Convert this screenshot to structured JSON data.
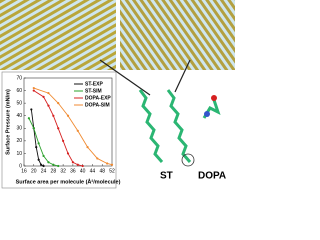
{
  "chart_data": {
    "type": "line",
    "xlabel": "Surface area per molecule (Å²/molecule)",
    "ylabel": "Surface Pressure (mN/m)",
    "xlim": [
      16,
      52
    ],
    "xticks": [
      16,
      20,
      24,
      28,
      32,
      36,
      40,
      44,
      48,
      52
    ],
    "ylim": [
      0,
      70
    ],
    "yticks": [
      0,
      10,
      20,
      30,
      40,
      50,
      60,
      70
    ],
    "legend": "upper right",
    "series": [
      {
        "name": "ST-EXP",
        "color": "#111111",
        "x": [
          19,
          20,
          21,
          22,
          23,
          24
        ],
        "values": [
          45,
          30,
          15,
          5,
          1,
          0
        ]
      },
      {
        "name": "ST-SIM",
        "color": "#2aa02a",
        "x": [
          18,
          20,
          22,
          24,
          26,
          28,
          30
        ],
        "values": [
          38,
          30,
          18,
          8,
          3,
          1,
          0
        ]
      },
      {
        "name": "DOPA-EXP",
        "color": "#d62020",
        "x": [
          20,
          24,
          26,
          28,
          30,
          32,
          34,
          36,
          38,
          40
        ],
        "values": [
          60,
          55,
          48,
          40,
          30,
          20,
          10,
          3,
          1,
          0
        ]
      },
      {
        "name": "DOPA-SIM",
        "color": "#f08a30",
        "x": [
          20,
          26,
          30,
          34,
          38,
          42,
          46,
          50,
          52
        ],
        "values": [
          62,
          58,
          50,
          40,
          28,
          15,
          6,
          2,
          1
        ]
      }
    ]
  },
  "labels": [
    "ST",
    "DOPA"
  ]
}
